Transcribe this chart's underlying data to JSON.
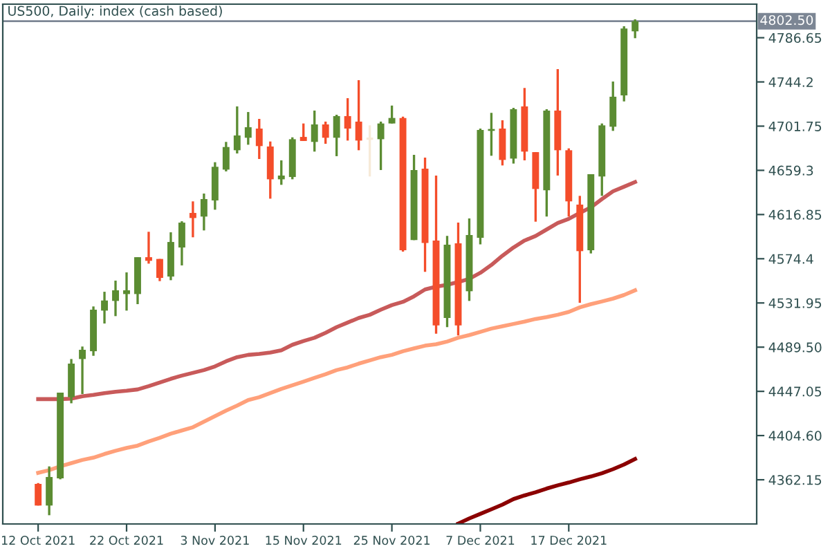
{
  "chart_data": {
    "type": "candlestick",
    "title": "US500, Daily: index (cash based)",
    "categories": [
      "12 Oct 2021",
      null,
      null,
      null,
      null,
      null,
      null,
      null,
      "22 Oct 2021",
      null,
      null,
      null,
      null,
      null,
      null,
      null,
      "3 Nov 2021",
      null,
      null,
      null,
      null,
      null,
      null,
      null,
      "15 Nov 2021",
      null,
      null,
      null,
      null,
      null,
      null,
      null,
      "25 Nov 2021",
      null,
      null,
      null,
      null,
      null,
      null,
      null,
      "7 Dec 2021",
      null,
      null,
      null,
      null,
      null,
      null,
      null,
      "17 Dec 2021",
      null,
      null,
      null,
      null,
      null,
      null
    ],
    "ohlc": [
      [
        4358.2,
        4359.0,
        4337.4,
        4337.4
      ],
      [
        4337.4,
        4375.0,
        4328.1,
        4364.8
      ],
      [
        4363.5,
        4445.8,
        4362.6,
        4445.8
      ],
      [
        4441.4,
        4478.1,
        4435.6,
        4473.7
      ],
      [
        4478.1,
        4490.1,
        4444.5,
        4487.0
      ],
      [
        4485.6,
        4528.6,
        4481.2,
        4525.5
      ],
      [
        4524.6,
        4542.7,
        4512.2,
        4534.3
      ],
      [
        4533.9,
        4553.4,
        4519.3,
        4544.1
      ],
      [
        4540.5,
        4561.3,
        4524.6,
        4544.1
      ],
      [
        4540.5,
        4575.9,
        4530.8,
        4575.9
      ],
      [
        4575.9,
        4600.3,
        4569.7,
        4572.4
      ],
      [
        4574.2,
        4574.2,
        4552.9,
        4556.0
      ],
      [
        4557.3,
        4599.8,
        4553.8,
        4590.5
      ],
      [
        4585.2,
        4610.4,
        4568.0,
        4609.1
      ],
      [
        4618.4,
        4629.5,
        4595.0,
        4613.5
      ],
      [
        4614.9,
        4637.0,
        4601.6,
        4631.7
      ],
      [
        4630.4,
        4667.1,
        4621.5,
        4662.7
      ],
      [
        4660.0,
        4686.6,
        4658.3,
        4681.7
      ],
      [
        4678.6,
        4720.7,
        4675.5,
        4692.8
      ],
      [
        4690.6,
        4715.3,
        4683.9,
        4700.7
      ],
      [
        4699.4,
        4708.7,
        4670.2,
        4682.6
      ],
      [
        4682.2,
        4687.0,
        4632.1,
        4650.7
      ],
      [
        4650.7,
        4668.9,
        4645.4,
        4654.3
      ],
      [
        4652.9,
        4691.0,
        4650.7,
        4689.2
      ],
      [
        4691.4,
        4704.3,
        4687.5,
        4687.5
      ],
      [
        4686.6,
        4716.7,
        4677.3,
        4703.4
      ],
      [
        4703.4,
        4706.1,
        4684.8,
        4690.6
      ],
      [
        4690.6,
        4712.7,
        4672.9,
        4711.4
      ],
      [
        4711.4,
        4728.6,
        4687.9,
        4699.4
      ],
      [
        4706.1,
        4745.9,
        4678.6,
        4687.9
      ],
      [
        4689.7,
        4702.5,
        4653.4,
        4689.7
      ],
      [
        4689.2,
        4706.1,
        4659.6,
        4704.3
      ],
      [
        4704.3,
        4721.5,
        4704.3,
        4709.6
      ],
      [
        4709.6,
        4710.9,
        4581.2,
        4582.6
      ],
      [
        4592.3,
        4674.2,
        4592.3,
        4659.6
      ],
      [
        4660.9,
        4671.5,
        4561.8,
        4589.6
      ],
      [
        4591.9,
        4654.3,
        4502.4,
        4510.4
      ],
      [
        4517.5,
        4596.3,
        4508.7,
        4587.9
      ],
      [
        4589.2,
        4609.1,
        4500.7,
        4510.4
      ],
      [
        4543.2,
        4613.1,
        4533.9,
        4597.2
      ],
      [
        4594.5,
        4699.4,
        4588.3,
        4698.1
      ],
      [
        4697.2,
        4714.5,
        4673.3,
        4699.0
      ],
      [
        4699.4,
        4707.4,
        4664.0,
        4669.3
      ],
      [
        4670.6,
        4719.3,
        4665.8,
        4718.0
      ],
      [
        4720.7,
        4738.4,
        4668.9,
        4677.3
      ],
      [
        4676.8,
        4676.8,
        4610.0,
        4641.4
      ],
      [
        4640.1,
        4718.0,
        4614.9,
        4716.7
      ],
      [
        4716.7,
        4756.5,
        4654.3,
        4678.6
      ],
      [
        4678.6,
        4680.4,
        4614.9,
        4629.5
      ],
      [
        4626.4,
        4634.8,
        4532.1,
        4581.7
      ],
      [
        4582.6,
        4655.6,
        4579.5,
        4655.6
      ],
      [
        4653.4,
        4704.3,
        4634.8,
        4702.5
      ],
      [
        4701.2,
        4744.6,
        4697.2,
        4730.0
      ],
      [
        4731.3,
        4797.7,
        4725.5,
        4795.5
      ],
      [
        4792.8,
        4804.3,
        4786.2,
        4802.5
      ]
    ],
    "colors": [
      "#f44d2a",
      "#5b8c32",
      "#5b8c32",
      "#5b8c32",
      "#5b8c32",
      "#5b8c32",
      "#5b8c32",
      "#5b8c32",
      "#5b8c32",
      "#5b8c32",
      "#f44d2a",
      "#f44d2a",
      "#5b8c32",
      "#5b8c32",
      "#f44d2a",
      "#5b8c32",
      "#5b8c32",
      "#5b8c32",
      "#5b8c32",
      "#5b8c32",
      "#f44d2a",
      "#f44d2a",
      "#5b8c32",
      "#5b8c32",
      "#f44d2a",
      "#5b8c32",
      "#f44d2a",
      "#5b8c32",
      "#f44d2a",
      "#f44d2a",
      "#f7ead8",
      "#5b8c32",
      "#5b8c32",
      "#f44d2a",
      "#5b8c32",
      "#f44d2a",
      "#f44d2a",
      "#5b8c32",
      "#f44d2a",
      "#5b8c32",
      "#5b8c32",
      "#5b8c32",
      "#f44d2a",
      "#5b8c32",
      "#f44d2a",
      "#f44d2a",
      "#5b8c32",
      "#f44d2a",
      "#f44d2a",
      "#f44d2a",
      "#5b8c32",
      "#5b8c32",
      "#5b8c32",
      "#5b8c32",
      "#5b8c32"
    ],
    "series": [
      {
        "type": "line",
        "color": "#c85a5a",
        "values": [
          4439.6,
          4439.6,
          4439.6,
          4440.0,
          4442.3,
          4443.6,
          4445.4,
          4446.7,
          4447.6,
          4448.9,
          4452.0,
          4455.5,
          4459.1,
          4462.2,
          4464.8,
          4467.5,
          4471.0,
          4475.9,
          4479.9,
          4482.1,
          4483.0,
          4484.3,
          4486.5,
          4491.8,
          4495.4,
          4498.5,
          4503.3,
          4508.7,
          4513.1,
          4517.5,
          4520.6,
          4525.5,
          4529.9,
          4533.0,
          4538.3,
          4544.9,
          4547.6,
          4549.4,
          4552.0,
          4555.1,
          4560.9,
          4568.4,
          4577.3,
          4585.2,
          4591.9,
          4596.3,
          4602.5,
          4608.7,
          4612.7,
          4618.4,
          4623.7,
          4631.7,
          4639.2,
          4643.6,
          4648.1
        ]
      },
      {
        "type": "line",
        "color": "#ffa07a",
        "values": [
          4368.8,
          4371.4,
          4375.0,
          4378.1,
          4381.2,
          4383.4,
          4386.9,
          4390.0,
          4392.7,
          4394.9,
          4398.9,
          4402.4,
          4406.4,
          4409.5,
          4412.6,
          4417.9,
          4423.2,
          4428.5,
          4433.4,
          4438.7,
          4441.4,
          4445.4,
          4449.4,
          4452.9,
          4456.4,
          4460.0,
          4463.5,
          4467.5,
          4470.1,
          4473.7,
          4476.8,
          4479.9,
          4482.1,
          4485.6,
          4488.3,
          4490.9,
          4492.3,
          4494.9,
          4498.5,
          4501.1,
          4504.2,
          4507.3,
          4509.5,
          4511.8,
          4514.0,
          4516.6,
          4518.4,
          4520.6,
          4523.3,
          4527.7,
          4530.8,
          4533.4,
          4536.1,
          4539.6,
          4544.1
        ]
      },
      {
        "type": "line",
        "color": "#8b0000",
        "values": [
          null,
          null,
          null,
          null,
          null,
          null,
          null,
          null,
          null,
          null,
          null,
          null,
          null,
          null,
          null,
          null,
          null,
          null,
          null,
          null,
          null,
          null,
          null,
          null,
          null,
          null,
          null,
          null,
          null,
          null,
          null,
          null,
          null,
          null,
          null,
          null,
          null,
          null,
          4320.1,
          4325.0,
          4329.4,
          4333.8,
          4338.3,
          4343.6,
          4347.1,
          4350.2,
          4353.7,
          4356.8,
          4359.5,
          4362.6,
          4365.3,
          4368.4,
          4372.3,
          4376.8,
          4382.1
        ]
      }
    ],
    "ylim": [
      4319.7,
      4818.9
    ],
    "yticks": [
      4362.15,
      {
        "value": 4404.6,
        "label": "4404.60"
      },
      4447.05,
      {
        "value": 4489.5,
        "label": "4489.50"
      },
      4531.95,
      4574.4,
      4616.85,
      4659.3,
      4701.75,
      4744.2,
      4786.65
    ],
    "ref_lines": [
      {
        "axis": "y",
        "value": 4802.5,
        "label": "4802.50",
        "color": "#7c8694"
      }
    ],
    "grid": false
  }
}
